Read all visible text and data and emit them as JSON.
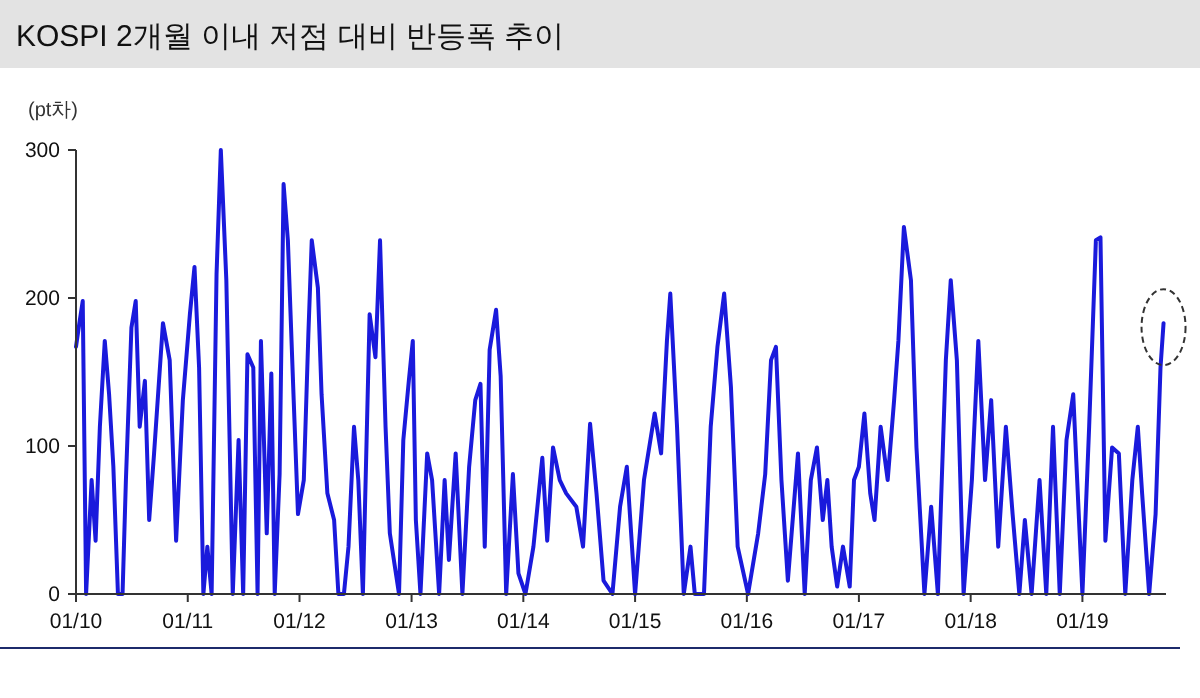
{
  "chart_data": {
    "type": "line",
    "title": "KOSPI 2개월 이내 저점 대비 반등폭 추이",
    "ylabel": "(pt차)",
    "xlim": [
      "2010-01-01",
      "2019-10-01"
    ],
    "xticks": [
      {
        "value": "2010-01-01",
        "label": "01/10"
      },
      {
        "value": "2011-01-01",
        "label": "01/11"
      },
      {
        "value": "2012-01-01",
        "label": "01/12"
      },
      {
        "value": "2013-01-01",
        "label": "01/13"
      },
      {
        "value": "2014-01-01",
        "label": "01/14"
      },
      {
        "value": "2015-01-01",
        "label": "01/15"
      },
      {
        "value": "2016-01-01",
        "label": "01/16"
      },
      {
        "value": "2017-01-01",
        "label": "01/17"
      },
      {
        "value": "2018-01-01",
        "label": "01/18"
      },
      {
        "value": "2019-01-01",
        "label": "01/19"
      }
    ],
    "ylim": [
      0,
      300
    ],
    "yticks": [
      0,
      100,
      200,
      300
    ],
    "grid": false,
    "marker": "none",
    "line_style": "solid",
    "series": [
      {
        "color": "#1a1adc",
        "x": [
          "2010-01-01",
          "2010-01-12",
          "2010-01-23",
          "2010-02-03",
          "2010-02-21",
          "2010-03-06",
          "2010-03-20",
          "2010-04-05",
          "2010-04-19",
          "2010-05-03",
          "2010-05-18",
          "2010-06-02",
          "2010-06-13",
          "2010-07-01",
          "2010-07-15",
          "2010-07-28",
          "2010-08-14",
          "2010-08-28",
          "2010-09-13",
          "2010-10-12",
          "2010-11-03",
          "2010-11-24",
          "2010-12-16",
          "2011-01-08",
          "2011-01-23",
          "2011-02-07",
          "2011-02-21",
          "2011-03-06",
          "2011-03-20",
          "2011-04-05",
          "2011-04-19",
          "2011-05-07",
          "2011-05-28",
          "2011-06-16",
          "2011-07-01",
          "2011-07-15",
          "2011-08-03",
          "2011-08-17",
          "2011-08-28",
          "2011-09-16",
          "2011-10-01",
          "2011-10-12",
          "2011-10-28",
          "2011-11-10",
          "2011-11-24",
          "2011-12-13",
          "2011-12-27",
          "2012-01-15",
          "2012-01-30",
          "2012-02-10",
          "2012-03-01",
          "2012-03-13",
          "2012-04-01",
          "2012-04-23",
          "2012-05-07",
          "2012-05-25",
          "2012-06-09",
          "2012-06-27",
          "2012-07-11",
          "2012-07-26",
          "2012-08-17",
          "2012-09-05",
          "2012-09-20",
          "2012-10-08",
          "2012-10-22",
          "2012-11-21",
          "2012-12-05",
          "2012-12-23",
          "2013-01-05",
          "2013-01-15",
          "2013-01-30",
          "2013-02-21",
          "2013-03-09",
          "2013-04-01",
          "2013-04-19",
          "2013-05-03",
          "2013-05-25",
          "2013-06-16",
          "2013-07-08",
          "2013-07-28",
          "2013-08-14",
          "2013-08-28",
          "2013-09-13",
          "2013-10-04",
          "2013-10-19",
          "2013-11-06",
          "2013-11-28",
          "2013-12-16",
          "2014-01-08",
          "2014-02-03",
          "2014-03-04",
          "2014-03-20",
          "2014-04-08",
          "2014-04-30",
          "2014-05-21",
          "2014-06-23",
          "2014-07-15",
          "2014-08-07",
          "2014-08-28",
          "2014-09-20",
          "2014-10-19",
          "2014-11-13",
          "2014-12-05",
          "2015-01-01",
          "2015-01-30",
          "2015-03-06",
          "2015-03-27",
          "2015-04-15",
          "2015-04-26",
          "2015-05-18",
          "2015-06-09",
          "2015-07-01",
          "2015-07-15",
          "2015-08-14",
          "2015-09-05",
          "2015-09-27",
          "2015-10-19",
          "2015-11-10",
          "2015-12-02",
          "2016-01-05",
          "2016-02-07",
          "2016-03-01",
          "2016-03-20",
          "2016-04-05",
          "2016-04-23",
          "2016-05-14",
          "2016-06-16",
          "2016-07-08",
          "2016-07-28",
          "2016-08-17",
          "2016-09-05",
          "2016-09-20",
          "2016-10-04",
          "2016-10-22",
          "2016-11-10",
          "2016-12-02",
          "2016-12-16",
          "2017-01-01",
          "2017-01-19",
          "2017-02-07",
          "2017-02-21",
          "2017-03-13",
          "2017-04-05",
          "2017-04-26",
          "2017-05-10",
          "2017-05-28",
          "2017-06-20",
          "2017-07-08",
          "2017-08-03",
          "2017-08-25",
          "2017-09-16",
          "2017-10-12",
          "2017-10-28",
          "2017-11-17",
          "2017-12-09",
          "2018-01-05",
          "2018-01-26",
          "2018-02-17",
          "2018-03-09",
          "2018-04-01",
          "2018-04-26",
          "2018-05-18",
          "2018-06-09",
          "2018-06-27",
          "2018-07-19",
          "2018-08-14",
          "2018-09-05",
          "2018-09-27",
          "2018-10-19",
          "2018-11-10",
          "2018-12-02",
          "2019-01-01",
          "2019-01-23",
          "2019-02-14",
          "2019-03-01",
          "2019-03-17",
          "2019-04-08",
          "2019-04-30",
          "2019-05-21",
          "2019-06-13",
          "2019-07-01",
          "2019-07-15",
          "2019-08-07",
          "2019-08-28",
          "2019-09-13",
          "2019-09-23"
        ],
        "values": [
          167,
          183,
          198,
          0,
          77,
          36,
          113,
          171,
          135,
          86,
          0,
          0,
          77,
          180,
          198,
          113,
          144,
          50,
          95,
          183,
          158,
          36,
          131,
          189,
          221,
          153,
          0,
          32,
          0,
          216,
          300,
          212,
          0,
          104,
          0,
          162,
          153,
          0,
          171,
          41,
          149,
          0,
          81,
          277,
          239,
          131,
          54,
          77,
          176,
          239,
          207,
          135,
          68,
          50,
          0,
          0,
          32,
          113,
          77,
          0,
          189,
          160,
          239,
          113,
          41,
          0,
          104,
          144,
          171,
          50,
          0,
          95,
          77,
          0,
          77,
          23,
          95,
          0,
          86,
          131,
          142,
          32,
          165,
          192,
          147,
          0,
          81,
          14,
          0,
          32,
          92,
          36,
          99,
          77,
          68,
          59,
          32,
          115,
          68,
          9,
          0,
          59,
          86,
          0,
          77,
          122,
          95,
          171,
          203,
          113,
          0,
          32,
          0,
          0,
          113,
          167,
          203,
          140,
          32,
          0,
          41,
          81,
          158,
          167,
          77,
          9,
          95,
          0,
          77,
          99,
          50,
          77,
          32,
          5,
          32,
          5,
          77,
          86,
          122,
          68,
          50,
          113,
          77,
          131,
          171,
          248,
          212,
          99,
          0,
          59,
          0,
          158,
          212,
          158,
          0,
          77,
          171,
          77,
          131,
          32,
          113,
          54,
          0,
          50,
          0,
          77,
          0,
          113,
          0,
          104,
          135,
          0,
          113,
          239,
          241,
          36,
          99,
          95,
          0,
          77,
          113,
          68,
          0,
          54,
          153,
          183
        ]
      }
    ]
  }
}
